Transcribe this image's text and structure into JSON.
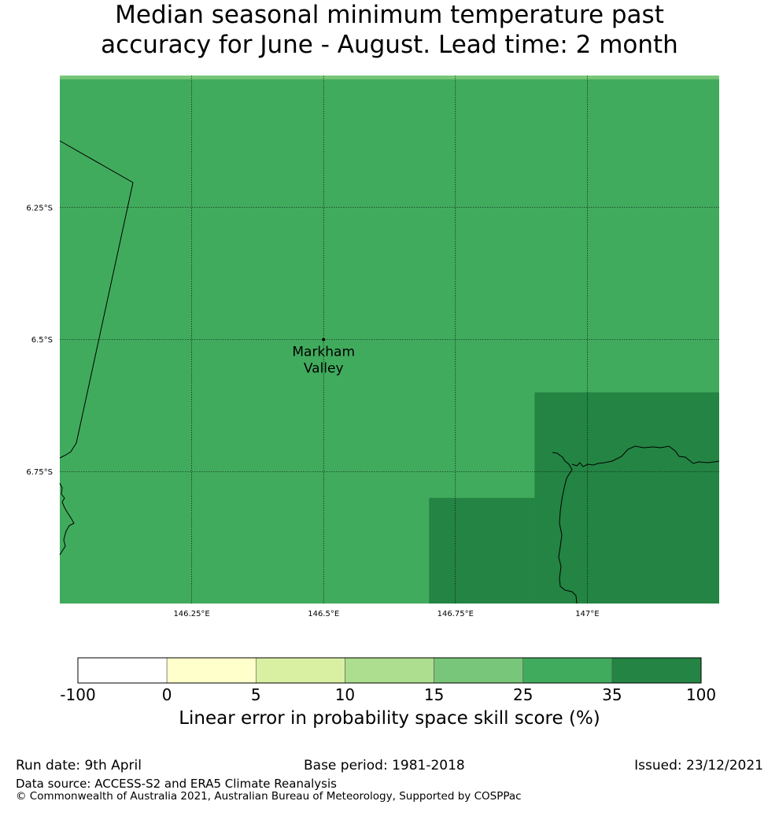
{
  "title": {
    "line1": "Median seasonal minimum temperature past",
    "line2": "accuracy for June - August. Lead time: 2 month"
  },
  "map": {
    "lat_labels": [
      "6.25°S",
      "6.5°S",
      "6.75°S"
    ],
    "lon_labels": [
      "146.25°E",
      "146.5°E",
      "146.75°E",
      "147°E"
    ],
    "place": {
      "name_line1": "Markham",
      "name_line2": "Valley",
      "lat": -6.5,
      "lon": 146.5
    },
    "bounds": {
      "lon_min": 146.0,
      "lon_max": 147.25,
      "lat_min": -7.0,
      "lat_max": -6.0
    },
    "grid_fill": [
      {
        "value_class": "25 - 35",
        "color": "#41ab5d",
        "lon": [
          146.0,
          147.25
        ],
        "lat": [
          -7.0,
          -6.0
        ]
      },
      {
        "value_class": "35 - 100",
        "color": "#238443",
        "lon": [
          146.9,
          147.25
        ],
        "lat": [
          -7.0,
          -6.6
        ]
      },
      {
        "value_class": "35 - 100",
        "color": "#238443",
        "lon": [
          146.7,
          146.9
        ],
        "lat": [
          -7.0,
          -6.8
        ]
      },
      {
        "value_class": "15 - 25",
        "color": "#78c679",
        "lon": [
          146.0,
          147.25
        ],
        "lat": [
          -6.007,
          -6.0
        ]
      }
    ],
    "colors": {
      "border": "#000000",
      "gridline": "#000000"
    }
  },
  "colorbar": {
    "ticks": [
      "-100",
      "0",
      "5",
      "10",
      "15",
      "25",
      "35",
      "100"
    ],
    "colors": [
      "#ffffff",
      "#ffffcc",
      "#d9f0a3",
      "#addd8e",
      "#78c679",
      "#41ab5d",
      "#238443"
    ],
    "label": "Linear error in probability space skill score (%)"
  },
  "footer": {
    "run_date": "Run date: 9th April",
    "base_period": "Base period: 1981-2018",
    "issued": "Issued: 23/12/2021",
    "data_source": "Data source: ACCESS-S2 and ERA5 Climate Reanalysis",
    "copyright": "© Commonwealth of Australia 2021, Australian Bureau of Meteorology, Supported by COSPPac"
  }
}
